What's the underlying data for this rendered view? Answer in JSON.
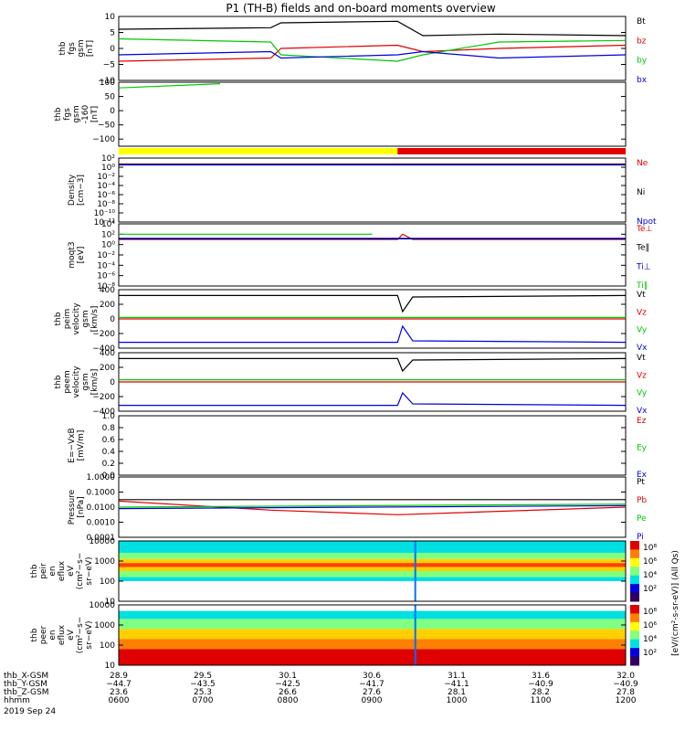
{
  "title": "P1 (TH-B) fields and on-board moments overview",
  "colors": {
    "black": "#000000",
    "red": "#e00000",
    "green": "#00c800",
    "blue": "#0000e0",
    "yellow": "#ffff00",
    "purple": "#7000a0"
  },
  "chart_data": [
    {
      "type": "line",
      "name": "thb fgs gsm",
      "ylabel": [
        "thb",
        "fgs",
        "gsm",
        "[nT]"
      ],
      "ylim": [
        -10,
        10
      ],
      "yticks": [
        "10",
        "5",
        "0",
        "−5",
        "−10"
      ],
      "ytick_values": [
        10,
        5,
        0,
        -5,
        -10
      ],
      "series": [
        {
          "name": "Bt",
          "color": "#000000",
          "x": [
            0,
            0.3,
            0.32,
            0.55,
            0.6,
            0.75,
            1
          ],
          "y": [
            6,
            6.5,
            8,
            8.5,
            4,
            4.5,
            4
          ]
        },
        {
          "name": "bz",
          "color": "#e00000",
          "x": [
            0,
            0.3,
            0.32,
            0.55,
            0.6,
            0.75,
            1
          ],
          "y": [
            -4,
            -3,
            0,
            1,
            -1,
            0,
            1
          ]
        },
        {
          "name": "by",
          "color": "#00c800",
          "x": [
            0,
            0.3,
            0.32,
            0.55,
            0.6,
            0.75,
            1
          ],
          "y": [
            3,
            2,
            -2,
            -4,
            -2,
            2,
            2.5
          ]
        },
        {
          "name": "bx",
          "color": "#0000e0",
          "x": [
            0,
            0.3,
            0.32,
            0.55,
            0.6,
            0.75,
            1
          ],
          "y": [
            -2,
            -1,
            -3,
            -2,
            -1,
            -3,
            -2
          ]
        }
      ]
    },
    {
      "type": "line",
      "name": "thb fgs gsm -160",
      "ylabel": [
        "thb",
        "fgs",
        "gsm",
        "-160",
        "[nT]"
      ],
      "ylim": [
        -125,
        100
      ],
      "yticks": [
        "100",
        "50",
        "0",
        "−50",
        "−100"
      ],
      "ytick_values": [
        100,
        50,
        0,
        -50,
        -100
      ],
      "series": [
        {
          "name": "",
          "color": "#00c800",
          "x": [
            0,
            0.2
          ],
          "y": [
            80,
            95
          ]
        }
      ]
    },
    {
      "type": "bar",
      "name": "mode bar",
      "segments": [
        {
          "from": 0,
          "to": 0.55,
          "color": "#ffff00"
        },
        {
          "from": 0.55,
          "to": 1,
          "color": "#e00000"
        }
      ]
    },
    {
      "type": "line",
      "name": "Density",
      "ylabel": [
        "Density",
        "[cm−3]"
      ],
      "ylog": true,
      "yticks": [
        "10²",
        "10⁰",
        "10⁻²",
        "10⁻⁴",
        "10⁻⁶",
        "10⁻⁸",
        "10⁻¹⁰",
        "10⁻¹²"
      ],
      "ytick_values": [
        2,
        0,
        -2,
        -4,
        -6,
        -8,
        -10,
        -12
      ],
      "series": [
        {
          "name": "Ne",
          "color": "#e00000",
          "x": [
            0,
            1
          ],
          "y": [
            0.7,
            0.7
          ]
        },
        {
          "name": "Ni",
          "color": "#000000",
          "x": [
            0,
            1
          ],
          "y": [
            0.6,
            0.6
          ]
        },
        {
          "name": "Npot",
          "color": "#0000e0",
          "x": [
            0,
            1
          ],
          "y": [
            0.5,
            0.5
          ]
        }
      ]
    },
    {
      "type": "line",
      "name": "moqt3",
      "ylabel": [
        "moqt3",
        "[eV]"
      ],
      "ylog": true,
      "yticks": [
        "10⁴",
        "10²",
        "10⁰",
        "10⁻²",
        "10⁻⁴",
        "10⁻⁶",
        "10⁻⁸"
      ],
      "ytick_values": [
        4,
        2,
        0,
        -2,
        -4,
        -6,
        -8
      ],
      "series": [
        {
          "name": "Te⊥",
          "color": "#e00000",
          "x": [
            0,
            0.55,
            0.56,
            0.58,
            1
          ],
          "y": [
            1,
            1,
            2,
            1,
            1
          ]
        },
        {
          "name": "Te‖",
          "color": "#000000",
          "x": [
            0,
            1
          ],
          "y": [
            1.1,
            1.1
          ]
        },
        {
          "name": "Ti⊥",
          "color": "#0000e0",
          "x": [
            0,
            1
          ],
          "y": [
            1.2,
            1.2
          ]
        },
        {
          "name": "Ti‖",
          "color": "#00c800",
          "x": [
            0,
            0.5
          ],
          "y": [
            2,
            2
          ]
        }
      ]
    },
    {
      "type": "line",
      "name": "thb peim velocity gsm",
      "ylabel": [
        "thb",
        "peim",
        "velocity",
        "gsm",
        "[km/s]"
      ],
      "ylim": [
        -400,
        400
      ],
      "yticks": [
        "400",
        "200",
        "0",
        "−200",
        "−400"
      ],
      "ytick_values": [
        400,
        200,
        0,
        -200,
        -400
      ],
      "series": [
        {
          "name": "Vt",
          "color": "#000000",
          "x": [
            0,
            0.55,
            0.56,
            0.58,
            1
          ],
          "y": [
            320,
            320,
            100,
            300,
            320
          ]
        },
        {
          "name": "Vz",
          "color": "#e00000",
          "x": [
            0,
            1
          ],
          "y": [
            0,
            0
          ]
        },
        {
          "name": "Vy",
          "color": "#00c800",
          "x": [
            0,
            1
          ],
          "y": [
            20,
            20
          ]
        },
        {
          "name": "Vx",
          "color": "#0000e0",
          "x": [
            0,
            0.55,
            0.56,
            0.58,
            1
          ],
          "y": [
            -320,
            -320,
            -100,
            -300,
            -320
          ]
        }
      ]
    },
    {
      "type": "line",
      "name": "thb peem velocity gsm",
      "ylabel": [
        "thb",
        "peem",
        "velocity",
        "gsm",
        "[km/s]"
      ],
      "ylim": [
        -400,
        400
      ],
      "yticks": [
        "400",
        "200",
        "0",
        "−200",
        "−400"
      ],
      "ytick_values": [
        400,
        200,
        0,
        -200,
        -400
      ],
      "series": [
        {
          "name": "Vt",
          "color": "#000000",
          "x": [
            0,
            0.55,
            0.56,
            0.58,
            1
          ],
          "y": [
            320,
            320,
            150,
            300,
            320
          ]
        },
        {
          "name": "Vz",
          "color": "#e00000",
          "x": [
            0,
            1
          ],
          "y": [
            0,
            0
          ]
        },
        {
          "name": "Vy",
          "color": "#00c800",
          "x": [
            0,
            1
          ],
          "y": [
            30,
            30
          ]
        },
        {
          "name": "Vx",
          "color": "#0000e0",
          "x": [
            0,
            0.55,
            0.56,
            0.58,
            1
          ],
          "y": [
            -320,
            -320,
            -150,
            -300,
            -320
          ]
        }
      ]
    },
    {
      "type": "line",
      "name": "E = -VxB",
      "ylabel": [
        "E=−VxB",
        "[mV/m]"
      ],
      "ylim": [
        0,
        1
      ],
      "yticks": [
        "1.0",
        "0.8",
        "0.6",
        "0.4",
        "0.2",
        "0.0"
      ],
      "ytick_values": [
        1,
        0.8,
        0.6,
        0.4,
        0.2,
        0
      ],
      "series": [
        {
          "name": "Ez",
          "color": "#e00000",
          "x": [],
          "y": []
        },
        {
          "name": "Ey",
          "color": "#00c800",
          "x": [],
          "y": []
        },
        {
          "name": "Ex",
          "color": "#0000e0",
          "x": [],
          "y": []
        }
      ]
    },
    {
      "type": "line",
      "name": "Pressure",
      "ylabel": [
        "Pressure",
        "[nPa]"
      ],
      "ylog": true,
      "yticks": [
        "1.0000",
        "0.1000",
        "0.0100",
        "0.0010",
        "0.0001"
      ],
      "ytick_values": [
        0,
        -1,
        -2,
        -3,
        -4
      ],
      "series": [
        {
          "name": "Pt",
          "color": "#000000",
          "x": [
            0,
            1
          ],
          "y": [
            -1.5,
            -1.5
          ]
        },
        {
          "name": "Pb",
          "color": "#e00000",
          "x": [
            0,
            0.3,
            0.55,
            1
          ],
          "y": [
            -1.6,
            -2.2,
            -2.5,
            -2.0
          ]
        },
        {
          "name": "Pe",
          "color": "#00c800",
          "x": [
            0,
            1
          ],
          "y": [
            -2.0,
            -1.8
          ]
        },
        {
          "name": "Pi",
          "color": "#0000e0",
          "x": [
            0,
            1
          ],
          "y": [
            -2.1,
            -1.9
          ]
        }
      ]
    },
    {
      "type": "heatmap",
      "name": "thb peir en eflux",
      "ylabel": [
        "thb",
        "peir",
        "en",
        "eflux",
        "eV",
        "(cm²−s−",
        "sr−eV)"
      ],
      "ylog": true,
      "yticks": [
        "10000",
        "1000",
        "100",
        "10"
      ],
      "ytick_values": [
        4,
        3,
        2,
        1
      ]
    },
    {
      "type": "heatmap",
      "name": "thb peer en eflux",
      "ylabel": [
        "thb",
        "peer",
        "en",
        "eflux",
        "eV",
        "(cm²−s−",
        "sr−eV)"
      ],
      "ylog": true,
      "yticks": [
        "10000",
        "1000",
        "100",
        "10"
      ],
      "ytick_values": [
        4,
        3,
        2,
        1
      ]
    }
  ],
  "colorbar": {
    "ion_label": "10⁸ 10⁶ 10⁴ 10²",
    "ion_ticks": [
      "10⁸",
      "10⁶",
      "10⁴",
      "10²"
    ],
    "elec_ticks": [
      "10⁸",
      "10⁶",
      "10⁴",
      "10²"
    ],
    "label": "[eV/(cm²-s-sr-eV)] (All Qs)"
  },
  "xaxis": {
    "rows": [
      {
        "label": "thb_X-GSM",
        "values": [
          "28.9",
          "29.5",
          "30.1",
          "30.6",
          "31.1",
          "31.6",
          "32.0"
        ]
      },
      {
        "label": "thb_Y-GSM",
        "values": [
          "−44.7",
          "−43.5",
          "−42.5",
          "−41.7",
          "−41.1",
          "−40.9",
          "−40.9"
        ]
      },
      {
        "label": "thb_Z-GSM",
        "values": [
          "23.6",
          "25.3",
          "26.6",
          "27.6",
          "28.1",
          "28.2",
          "27.8"
        ]
      },
      {
        "label": "hhmm",
        "values": [
          "0600",
          "0700",
          "0800",
          "0900",
          "1000",
          "1100",
          "1200"
        ]
      }
    ],
    "date": "2019 Sep 24"
  }
}
